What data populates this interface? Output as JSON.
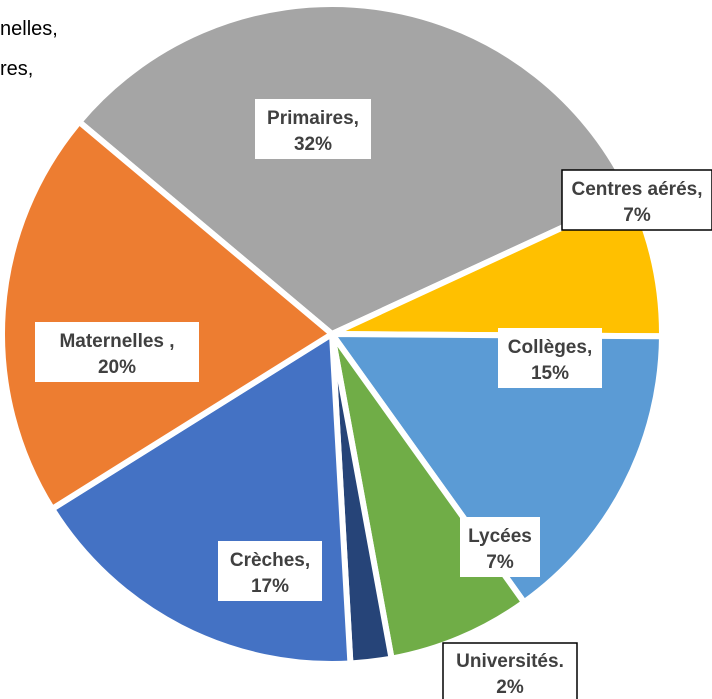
{
  "partial_labels": [
    "nelles,",
    "res,"
  ],
  "chart_data": {
    "type": "pie",
    "title": "",
    "slices": [
      {
        "name": "Primaires",
        "value": 32,
        "label_line1": "Primaires,",
        "label_line2": "32%",
        "color": "#A5A5A5",
        "label_box": true,
        "box_border": false
      },
      {
        "name": "Centres aérés",
        "value": 7,
        "label_line1": "Centres aérés,",
        "label_line2": "7%",
        "color": "#FFC000",
        "label_box": true,
        "box_border": true
      },
      {
        "name": "Collèges",
        "value": 15,
        "label_line1": "Collèges,",
        "label_line2": "15%",
        "color": "#5B9BD5",
        "label_box": true,
        "box_border": false
      },
      {
        "name": "Lycées",
        "value": 7,
        "label_line1": "Lycées",
        "label_line2": "7%",
        "color": "#70AD47",
        "label_box": true,
        "box_border": false
      },
      {
        "name": "Universités",
        "value": 2,
        "label_line1": "Universités.",
        "label_line2": "2%",
        "color": "#264478",
        "label_box": true,
        "box_border": true
      },
      {
        "name": "Crèches",
        "value": 17,
        "label_line1": "Crèches,",
        "label_line2": "17%",
        "color": "#4472C4",
        "label_box": true,
        "box_border": false
      },
      {
        "name": "Maternelles",
        "value": 20,
        "label_line1": "Maternelles ,",
        "label_line2": "20%",
        "color": "#ED7D31",
        "label_box": true,
        "box_border": false
      }
    ]
  }
}
